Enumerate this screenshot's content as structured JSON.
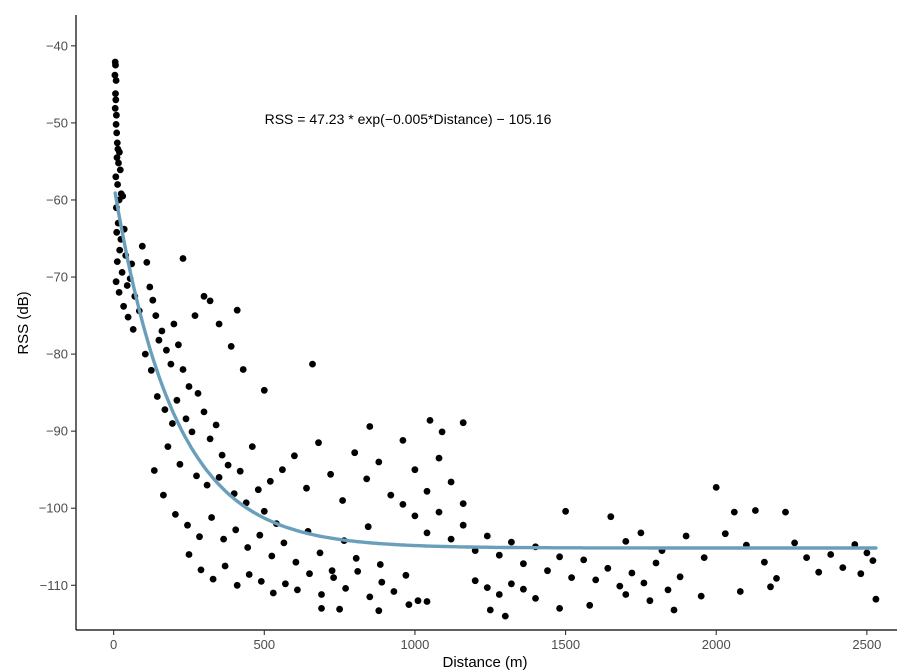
{
  "chart_data": {
    "type": "scatter",
    "title": "",
    "xlabel": "Distance (m)",
    "ylabel": "RSS (dB)",
    "xlim": [
      -125,
      2600
    ],
    "ylim": [
      -115.8,
      -36
    ],
    "x_ticks": [
      0,
      500,
      1000,
      1500,
      2000,
      2500
    ],
    "y_ticks": [
      -40,
      -50,
      -60,
      -70,
      -80,
      -90,
      -100,
      -110
    ],
    "x_tick_labels": [
      "0",
      "500",
      "1000",
      "1500",
      "2000",
      "2500"
    ],
    "y_tick_labels": [
      "−40",
      "−50",
      "−60",
      "−70",
      "−80",
      "−90",
      "−100",
      "−110"
    ],
    "grid": false,
    "annotation": "RSS = 47.23 * exp(−0.005*Distance) − 105.16",
    "fit": {
      "a": 47.23,
      "b": -0.005,
      "c": -105.16,
      "x_min": 5,
      "x_max": 2530,
      "color": "#6a9fbc"
    },
    "points": [
      [
        5,
        -42.1
      ],
      [
        6,
        -42.5
      ],
      [
        4,
        -43.8
      ],
      [
        8,
        -44.5
      ],
      [
        6,
        -46.2
      ],
      [
        7,
        -47.0
      ],
      [
        5,
        -48.1
      ],
      [
        9,
        -49.0
      ],
      [
        8,
        -50.2
      ],
      [
        10,
        -51.3
      ],
      [
        12,
        -52.6
      ],
      [
        14,
        -53.4
      ],
      [
        11,
        -54.5
      ],
      [
        16,
        -55.2
      ],
      [
        19,
        -53.8
      ],
      [
        22,
        -56.1
      ],
      [
        7,
        -57.0
      ],
      [
        13,
        -58.0
      ],
      [
        25,
        -59.2
      ],
      [
        18,
        -60.0
      ],
      [
        9,
        -61.0
      ],
      [
        30,
        -59.5
      ],
      [
        15,
        -63.0
      ],
      [
        10,
        -64.2
      ],
      [
        24,
        -65.1
      ],
      [
        35,
        -63.8
      ],
      [
        20,
        -66.5
      ],
      [
        12,
        -68.0
      ],
      [
        40,
        -67.2
      ],
      [
        28,
        -69.4
      ],
      [
        8,
        -70.6
      ],
      [
        45,
        -71.1
      ],
      [
        18,
        -72.0
      ],
      [
        55,
        -70.2
      ],
      [
        60,
        -68.3
      ],
      [
        33,
        -73.8
      ],
      [
        70,
        -72.5
      ],
      [
        48,
        -75.2
      ],
      [
        85,
        -74.4
      ],
      [
        65,
        -76.8
      ],
      [
        95,
        -66.0
      ],
      [
        110,
        -68.1
      ],
      [
        120,
        -71.3
      ],
      [
        130,
        -73.0
      ],
      [
        140,
        -75.0
      ],
      [
        150,
        -78.2
      ],
      [
        105,
        -80.0
      ],
      [
        125,
        -82.1
      ],
      [
        160,
        -77.0
      ],
      [
        175,
        -79.5
      ],
      [
        190,
        -81.3
      ],
      [
        200,
        -76.1
      ],
      [
        215,
        -78.8
      ],
      [
        230,
        -82.0
      ],
      [
        250,
        -84.2
      ],
      [
        145,
        -85.5
      ],
      [
        170,
        -87.2
      ],
      [
        195,
        -89.0
      ],
      [
        210,
        -86.0
      ],
      [
        240,
        -88.4
      ],
      [
        260,
        -90.1
      ],
      [
        280,
        -85.1
      ],
      [
        300,
        -87.5
      ],
      [
        320,
        -91.0
      ],
      [
        340,
        -89.2
      ],
      [
        360,
        -93.1
      ],
      [
        180,
        -92.0
      ],
      [
        220,
        -94.3
      ],
      [
        275,
        -95.8
      ],
      [
        310,
        -97.0
      ],
      [
        350,
        -96.0
      ],
      [
        380,
        -94.4
      ],
      [
        400,
        -98.1
      ],
      [
        420,
        -95.2
      ],
      [
        440,
        -99.3
      ],
      [
        460,
        -92.0
      ],
      [
        480,
        -97.6
      ],
      [
        500,
        -100.4
      ],
      [
        520,
        -96.5
      ],
      [
        540,
        -102.0
      ],
      [
        135,
        -95.1
      ],
      [
        165,
        -98.3
      ],
      [
        205,
        -100.8
      ],
      [
        245,
        -102.2
      ],
      [
        285,
        -103.7
      ],
      [
        325,
        -101.2
      ],
      [
        365,
        -104.0
      ],
      [
        405,
        -102.8
      ],
      [
        445,
        -105.1
      ],
      [
        485,
        -103.5
      ],
      [
        525,
        -106.2
      ],
      [
        565,
        -104.5
      ],
      [
        605,
        -107.0
      ],
      [
        645,
        -103.0
      ],
      [
        685,
        -105.8
      ],
      [
        725,
        -108.1
      ],
      [
        765,
        -104.2
      ],
      [
        805,
        -106.5
      ],
      [
        845,
        -102.4
      ],
      [
        885,
        -107.3
      ],
      [
        250,
        -106.0
      ],
      [
        290,
        -108.0
      ],
      [
        330,
        -109.2
      ],
      [
        370,
        -107.5
      ],
      [
        410,
        -110.0
      ],
      [
        450,
        -108.6
      ],
      [
        490,
        -109.5
      ],
      [
        530,
        -111.0
      ],
      [
        570,
        -109.8
      ],
      [
        610,
        -110.6
      ],
      [
        650,
        -108.5
      ],
      [
        690,
        -111.2
      ],
      [
        730,
        -109.0
      ],
      [
        770,
        -110.4
      ],
      [
        810,
        -108.2
      ],
      [
        850,
        -111.5
      ],
      [
        890,
        -109.6
      ],
      [
        930,
        -110.8
      ],
      [
        970,
        -108.7
      ],
      [
        1010,
        -112.0
      ],
      [
        560,
        -95.0
      ],
      [
        600,
        -93.2
      ],
      [
        640,
        -97.4
      ],
      [
        680,
        -91.5
      ],
      [
        720,
        -95.6
      ],
      [
        760,
        -99.0
      ],
      [
        800,
        -92.8
      ],
      [
        840,
        -96.2
      ],
      [
        880,
        -94.0
      ],
      [
        920,
        -98.3
      ],
      [
        960,
        -91.2
      ],
      [
        1000,
        -95.0
      ],
      [
        1040,
        -97.8
      ],
      [
        1080,
        -93.5
      ],
      [
        1120,
        -96.6
      ],
      [
        1160,
        -99.4
      ],
      [
        1050,
        -88.6
      ],
      [
        1160,
        -88.9
      ],
      [
        850,
        -89.4
      ],
      [
        1090,
        -90.1
      ],
      [
        660,
        -81.3
      ],
      [
        500,
        -84.7
      ],
      [
        430,
        -82.0
      ],
      [
        390,
        -79.0
      ],
      [
        350,
        -76.1
      ],
      [
        320,
        -73.1
      ],
      [
        300,
        -72.5
      ],
      [
        410,
        -74.3
      ],
      [
        270,
        -75.0
      ],
      [
        230,
        -67.6
      ],
      [
        960,
        -99.5
      ],
      [
        1000,
        -101.0
      ],
      [
        1040,
        -103.2
      ],
      [
        1080,
        -100.5
      ],
      [
        1120,
        -104.0
      ],
      [
        1160,
        -102.2
      ],
      [
        1200,
        -105.5
      ],
      [
        1240,
        -103.6
      ],
      [
        1280,
        -106.1
      ],
      [
        1320,
        -104.4
      ],
      [
        1360,
        -107.2
      ],
      [
        1400,
        -105.0
      ],
      [
        1440,
        -108.1
      ],
      [
        1480,
        -106.3
      ],
      [
        1520,
        -109.0
      ],
      [
        1200,
        -109.4
      ],
      [
        1240,
        -110.3
      ],
      [
        1280,
        -111.2
      ],
      [
        1320,
        -109.8
      ],
      [
        1360,
        -110.5
      ],
      [
        1500,
        -100.4
      ],
      [
        1560,
        -106.7
      ],
      [
        1600,
        -109.3
      ],
      [
        1640,
        -107.8
      ],
      [
        1680,
        -110.1
      ],
      [
        1720,
        -108.4
      ],
      [
        1760,
        -109.7
      ],
      [
        1800,
        -107.1
      ],
      [
        1840,
        -110.6
      ],
      [
        1880,
        -108.9
      ],
      [
        1650,
        -101.1
      ],
      [
        1700,
        -104.3
      ],
      [
        1750,
        -103.2
      ],
      [
        1820,
        -105.5
      ],
      [
        1900,
        -103.6
      ],
      [
        1960,
        -106.4
      ],
      [
        2000,
        -97.3
      ],
      [
        2030,
        -103.3
      ],
      [
        2060,
        -100.5
      ],
      [
        2100,
        -104.8
      ],
      [
        2130,
        -100.3
      ],
      [
        2160,
        -107.0
      ],
      [
        2200,
        -109.1
      ],
      [
        2230,
        -100.5
      ],
      [
        2260,
        -104.5
      ],
      [
        2300,
        -106.4
      ],
      [
        2340,
        -108.3
      ],
      [
        2380,
        -106.0
      ],
      [
        2420,
        -107.7
      ],
      [
        2460,
        -104.7
      ],
      [
        2500,
        -105.8
      ],
      [
        2520,
        -106.8
      ],
      [
        2530,
        -111.8
      ],
      [
        2480,
        -108.5
      ],
      [
        1860,
        -113.2
      ],
      [
        1300,
        -114.0
      ],
      [
        880,
        -113.3
      ],
      [
        750,
        -113.1
      ],
      [
        690,
        -113.0
      ],
      [
        1040,
        -112.1
      ],
      [
        1250,
        -113.2
      ],
      [
        1400,
        -111.7
      ],
      [
        1580,
        -112.6
      ],
      [
        1700,
        -111.2
      ],
      [
        1780,
        -112.0
      ],
      [
        1950,
        -111.4
      ],
      [
        2080,
        -110.8
      ],
      [
        2180,
        -110.2
      ],
      [
        1480,
        -113.0
      ],
      [
        980,
        -112.5
      ]
    ]
  }
}
